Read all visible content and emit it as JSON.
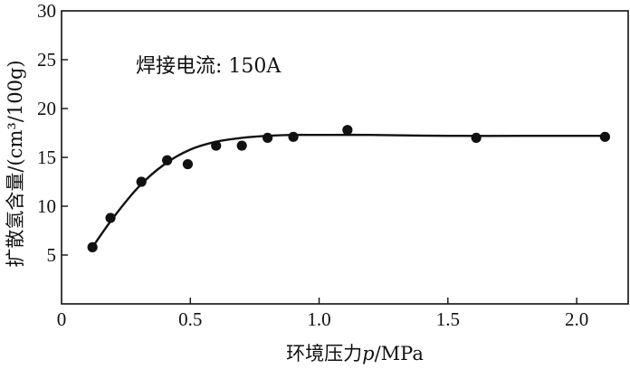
{
  "chart_data": {
    "type": "scatter",
    "title": "",
    "annotation": "焊接电流: 150A",
    "xlabel": "环境压力",
    "xlabel_var": "p",
    "xlabel_unit": "/MPa",
    "ylabel": "扩散氢含量/(cm³/100g)",
    "xlim": [
      0,
      2.2
    ],
    "ylim": [
      0,
      30
    ],
    "x_ticks": [
      0,
      0.5,
      1.0,
      1.5,
      2.0
    ],
    "x_tick_labels": [
      "0",
      "0.5",
      "1.0",
      "1.5",
      "2.0"
    ],
    "y_ticks": [
      5,
      10,
      15,
      20,
      25,
      30
    ],
    "y_tick_labels": [
      "5",
      "10",
      "15",
      "20",
      "25",
      "30"
    ],
    "grid": false,
    "series": [
      {
        "x": [
          0.12,
          0.19,
          0.31,
          0.41,
          0.49,
          0.6,
          0.7,
          0.8,
          0.9,
          1.11,
          1.61,
          2.11
        ],
        "y": [
          5.8,
          8.8,
          12.5,
          14.7,
          14.3,
          16.2,
          16.2,
          17.0,
          17.1,
          17.8,
          17.0,
          17.1
        ]
      }
    ],
    "fit_curve": {
      "x": [
        0.12,
        0.2,
        0.3,
        0.4,
        0.5,
        0.6,
        0.7,
        0.8,
        0.9,
        1.0,
        1.2,
        1.5,
        1.8,
        2.1
      ],
      "y": [
        5.8,
        8.8,
        12.0,
        14.3,
        15.8,
        16.6,
        17.0,
        17.2,
        17.3,
        17.3,
        17.3,
        17.2,
        17.2,
        17.2
      ]
    },
    "colors": {
      "marker": "#111111",
      "line": "#111111",
      "axis": "#111111"
    }
  }
}
